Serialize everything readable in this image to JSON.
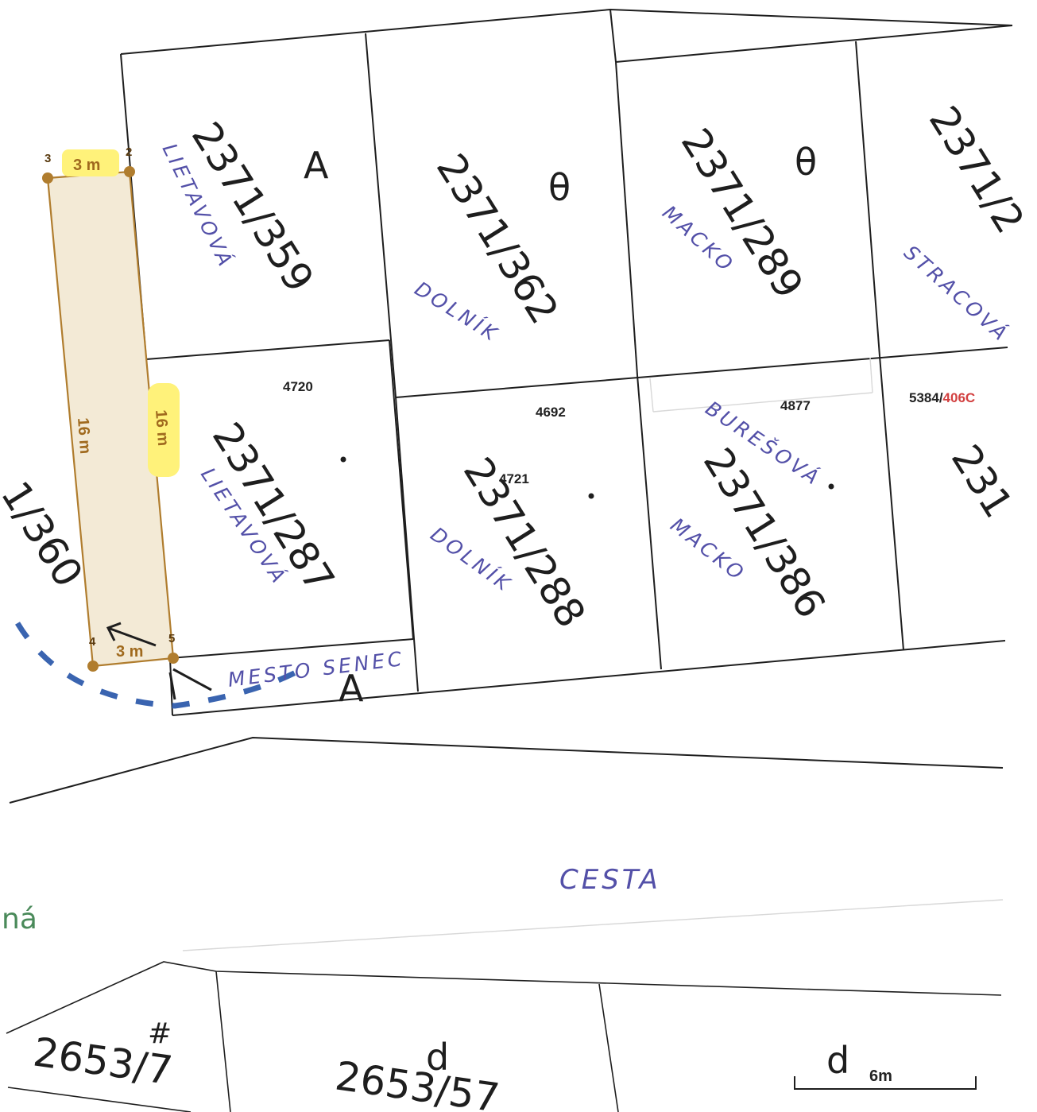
{
  "parcels": {
    "p359": "2371/359",
    "p362": "2371/362",
    "p289": "2371/289",
    "p_top_right": "2371/2",
    "p287": "2371/287",
    "p288": "2371/288",
    "p386": "2371/386",
    "p_mid_right": "231",
    "p360": "1/360",
    "p2653_7": "2653/7",
    "p2653_57": "2653/57"
  },
  "house_numbers": {
    "n4720": "4720",
    "n4692": "4692",
    "n4721": "4721",
    "n4877": "4877",
    "n5384_black": "5384/",
    "n5384_red": "406C"
  },
  "owners": {
    "lietavova_1": "LIETAVOVÁ",
    "dolnik_1": "DOLNÍK",
    "macko_1": "MACKO",
    "stracova": "STRACOVÁ",
    "buresova": "BUREŠOVÁ",
    "lietavova_2": "LIETAVOVÁ",
    "dolnik_2": "DOLNÍK",
    "macko_2": "MACKO",
    "mesto": "MESTO SENEC",
    "cesta": "CESTA"
  },
  "symbols": {
    "a1": "A",
    "theta1": "θ",
    "theta2": "θ",
    "a2": "A",
    "d1": "d",
    "d2": "d",
    "hash": "#"
  },
  "measurement": {
    "top_width": "3 m",
    "bottom_width": "3 m",
    "left_length": "16 m",
    "right_length": "16 m",
    "points": [
      "3",
      "2",
      "4",
      "5"
    ],
    "fill_color": "#f3ead6",
    "edge_color": "#b07d2e",
    "highlight_color": "#fff27a"
  },
  "partial_label": "ná",
  "scale_bar": {
    "symbol": "d",
    "label": "6m"
  },
  "colors": {
    "ink": "#5350a8",
    "boundary_dash": "#3a64b0",
    "red_code": "#d24040",
    "green_text": "#4a8a5a"
  }
}
